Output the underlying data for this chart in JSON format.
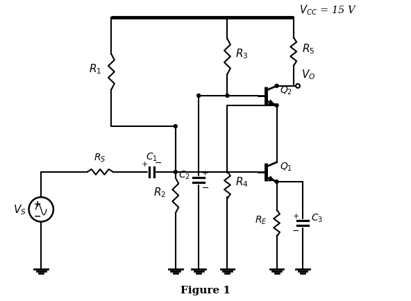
{
  "title": "Figure 1",
  "vcc_label": "$V_{CC}$ = 15 V",
  "R1": "$R_1$",
  "R2": "$R_2$",
  "R3": "$R_3$",
  "R4": "$R_4$",
  "R5": "$R_5$",
  "RS": "$R_S$",
  "RE": "$R_E$",
  "C1": "$C_1$",
  "C2": "$C_2$",
  "C3": "$C_3$",
  "Q1": "$Q_1$",
  "Q2": "$Q_2$",
  "VS": "$V_S$",
  "VO": "$V_O$",
  "lw": 1.5,
  "bg_color": "#ffffff",
  "lc": "#000000"
}
